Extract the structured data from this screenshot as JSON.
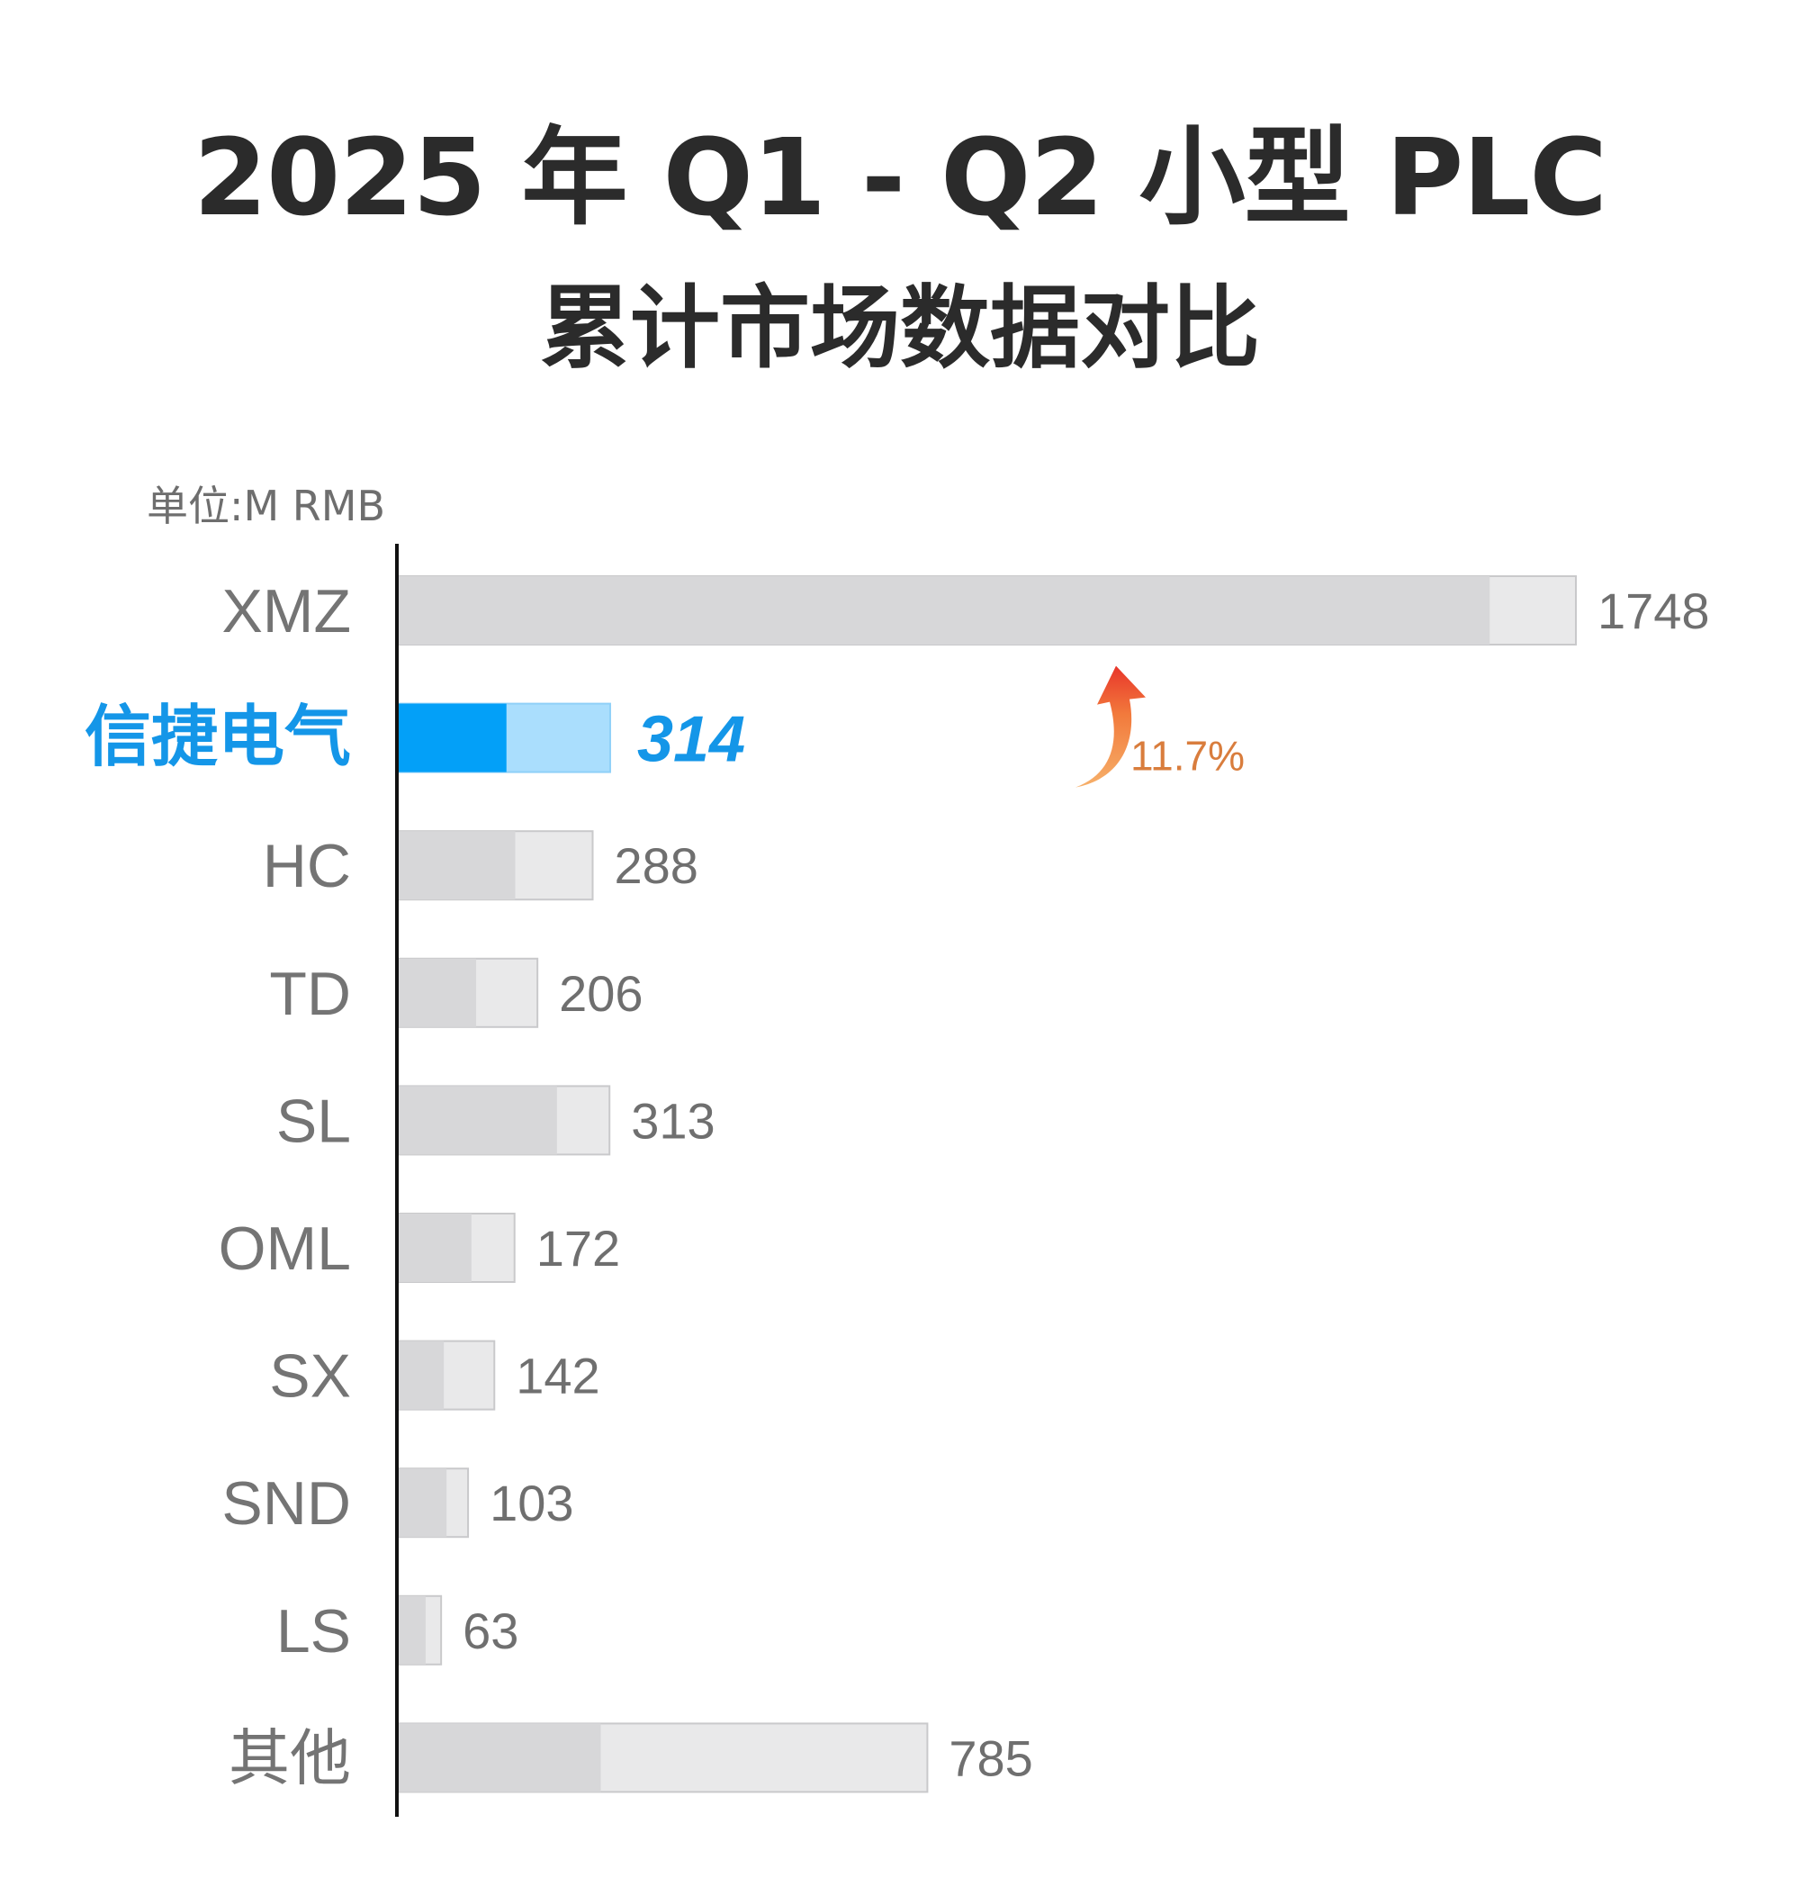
{
  "title": {
    "line1": "2025 年 Q1 - Q2 小型 PLC",
    "line2": "累计市场数据对比"
  },
  "unit_label": "单位:M RMB",
  "colors": {
    "highlight_dark": "#03a0f8",
    "highlight_light": "#aadefd",
    "bar_dark": "#d7d7d9",
    "bar_light": "#e9e9ea",
    "highlight_text": "#1496e8",
    "growth_text": "#d97d3d"
  },
  "chart_data": {
    "type": "bar",
    "orientation": "horizontal",
    "unit": "M RMB",
    "categories": [
      "XMZ",
      "信捷电气",
      "HC",
      "TD",
      "SL",
      "OML",
      "SX",
      "SND",
      "LS",
      "其他"
    ],
    "values": [
      1748,
      314,
      288,
      206,
      313,
      172,
      142,
      103,
      63,
      785
    ],
    "value_labels": [
      "1748",
      "314",
      "288",
      "206",
      "313",
      "172",
      "142",
      "103",
      "63",
      "785"
    ],
    "dark_segment_values": [
      1620,
      160,
      173,
      115,
      235,
      108,
      67,
      71,
      40,
      300
    ],
    "highlight_index": 1,
    "highlight_growth": {
      "label": "11.7%",
      "direction": "up"
    },
    "xlim": [
      0,
      1748
    ],
    "grid": false,
    "legend": "none"
  }
}
